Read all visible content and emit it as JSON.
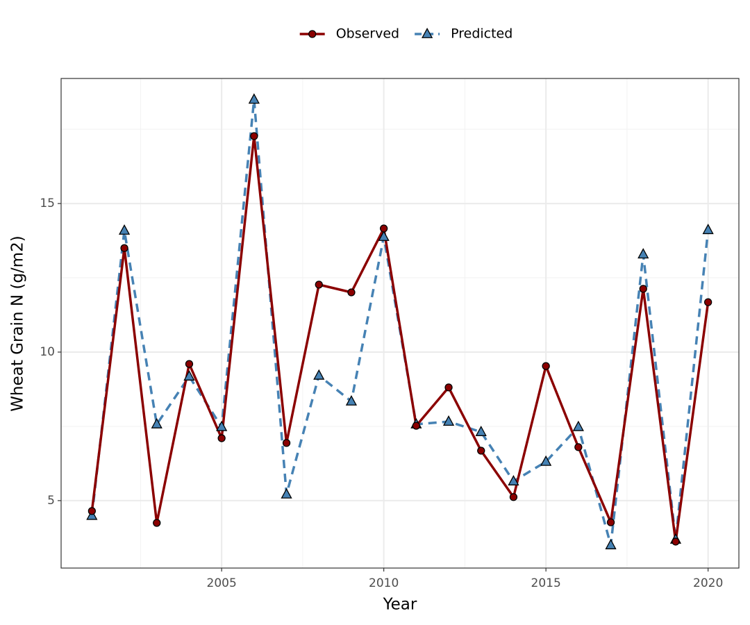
{
  "chart_data": {
    "type": "line",
    "x_label": "Year",
    "y_label": "Wheat Grain N (g/m2)",
    "x": [
      2001,
      2002,
      2003,
      2004,
      2005,
      2006,
      2007,
      2008,
      2009,
      2010,
      2011,
      2012,
      2013,
      2014,
      2015,
      2016,
      2017,
      2018,
      2019,
      2020
    ],
    "series": [
      {
        "name": "Observed",
        "color": "#8b0000",
        "marker": "circle",
        "dashed": false,
        "values": [
          4.65,
          13.5,
          4.25,
          9.6,
          7.1,
          17.27,
          6.94,
          12.27,
          12.01,
          14.16,
          7.52,
          8.81,
          6.68,
          5.12,
          9.53,
          6.8,
          4.27,
          12.13,
          3.62,
          11.68
        ]
      },
      {
        "name": "Predicted",
        "color": "#4682b4",
        "marker": "triangle",
        "dashed": true,
        "values": [
          4.49,
          14.09,
          7.57,
          9.18,
          7.48,
          18.5,
          5.21,
          9.21,
          8.34,
          13.88,
          7.57,
          7.66,
          7.31,
          5.65,
          6.31,
          7.48,
          3.5,
          13.29,
          3.69,
          14.11
        ]
      }
    ],
    "xlim": [
      2000.05,
      2020.95
    ],
    "ylim": [
      2.73,
      19.21
    ],
    "xticks": [
      2005,
      2010,
      2015,
      2020
    ],
    "yticks": [
      5,
      10,
      15
    ],
    "x_minor_ticks": [
      2002.5,
      2007.5,
      2012.5,
      2017.5
    ],
    "y_minor_ticks": [
      7.5,
      12.5,
      17.5
    ],
    "grid": true,
    "legend": "top"
  }
}
